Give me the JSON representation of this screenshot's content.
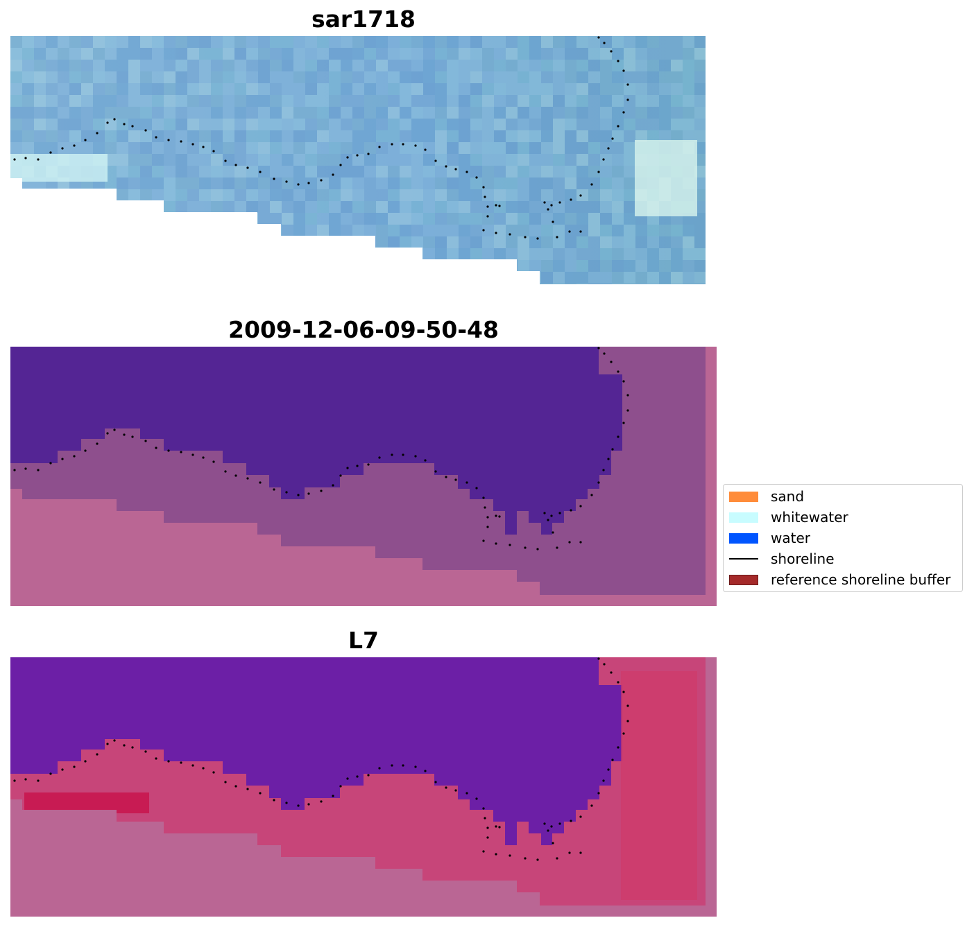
{
  "panels": [
    {
      "title": "sar1718"
    },
    {
      "title": "2009-12-06-09-50-48"
    },
    {
      "title": "L7"
    }
  ],
  "legend": {
    "items": [
      {
        "label": "sand",
        "color": "#ff8c3a",
        "kind": "patch"
      },
      {
        "label": "whitewater",
        "color": "#c8fcff",
        "kind": "patch"
      },
      {
        "label": "water",
        "color": "#0055ff",
        "kind": "patch"
      },
      {
        "label": "shoreline",
        "color": "#000000",
        "kind": "line"
      },
      {
        "label": "reference shoreline buffer",
        "color": "#a52a2a",
        "kind": "patch"
      }
    ]
  },
  "colors": {
    "sar_image": "#7fb0d6",
    "classified_water": "#542594",
    "classified_land": "#b86693",
    "l7_water": "#6a1aa6",
    "l7_land": "#c93f6e",
    "background_mask": "#ba6694"
  }
}
